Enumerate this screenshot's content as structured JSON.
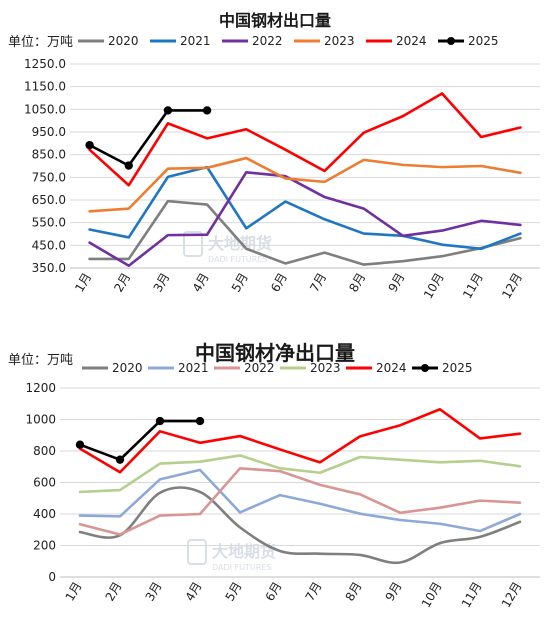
{
  "watermark": {
    "text_cn": "大地期货",
    "text_en": "DADI FUTURES"
  },
  "chart_data": [
    {
      "type": "line",
      "title": "中国钢材出口量",
      "unit_label": "单位：万吨",
      "categories": [
        "1月",
        "2月",
        "3月",
        "4月",
        "5月",
        "6月",
        "7月",
        "8月",
        "9月",
        "10月",
        "11月",
        "12月"
      ],
      "ylim": [
        350,
        1250
      ],
      "yticks": [
        "350.0",
        "450.0",
        "550.0",
        "650.0",
        "750.0",
        "850.0",
        "950.0",
        "1050.0",
        "1150.0",
        "1250.0"
      ],
      "grid": true,
      "legend_position": "top",
      "series": [
        {
          "name": "2020",
          "color": "#7f7f7f",
          "values": [
            390,
            390,
            645,
            630,
            435,
            370,
            418,
            365,
            380,
            402,
            438,
            482
          ]
        },
        {
          "name": "2021",
          "color": "#1f77c4",
          "values": [
            520,
            485,
            752,
            795,
            525,
            643,
            565,
            502,
            492,
            453,
            435,
            502
          ]
        },
        {
          "name": "2022",
          "color": "#7030a0",
          "values": [
            462,
            360,
            495,
            497,
            772,
            755,
            663,
            612,
            492,
            515,
            558,
            540
          ]
        },
        {
          "name": "2023",
          "color": "#ed7d31",
          "values": [
            600,
            612,
            788,
            792,
            835,
            745,
            730,
            827,
            805,
            795,
            800,
            770
          ]
        },
        {
          "name": "2024",
          "color": "#ff0000",
          "values": [
            872,
            715,
            988,
            922,
            962,
            872,
            778,
            947,
            1020,
            1120,
            928,
            970
          ]
        },
        {
          "name": "2025",
          "color": "#000000",
          "marker": true,
          "values": [
            892,
            802,
            1045,
            1045,
            null,
            null,
            null,
            null,
            null,
            null,
            null,
            null
          ]
        }
      ]
    },
    {
      "type": "line",
      "title": "中国钢材净出口量",
      "unit_label": "单位：万吨",
      "categories": [
        "1月",
        "2月",
        "3月",
        "4月",
        "5月",
        "6月",
        "7月",
        "8月",
        "9月",
        "10月",
        "11月",
        "12月"
      ],
      "ylim": [
        0,
        1200
      ],
      "yticks": [
        "0",
        "200",
        "400",
        "600",
        "800",
        "1000",
        "1200"
      ],
      "grid": true,
      "legend_position": "top",
      "series": [
        {
          "name": "2020",
          "color": "#7f7f7f",
          "smooth": true,
          "values": [
            285,
            265,
            535,
            540,
            315,
            165,
            148,
            140,
            92,
            215,
            255,
            350
          ]
        },
        {
          "name": "2021",
          "color": "#8ea9d8",
          "values": [
            390,
            385,
            620,
            680,
            410,
            520,
            465,
            402,
            362,
            338,
            292,
            400
          ]
        },
        {
          "name": "2022",
          "color": "#d99594",
          "values": [
            335,
            270,
            390,
            400,
            690,
            672,
            585,
            525,
            408,
            440,
            485,
            472
          ]
        },
        {
          "name": "2023",
          "color": "#b5cf8d",
          "values": [
            540,
            552,
            720,
            732,
            772,
            690,
            662,
            762,
            745,
            728,
            738,
            703
          ]
        },
        {
          "name": "2024",
          "color": "#ff0000",
          "values": [
            815,
            665,
            925,
            852,
            895,
            810,
            728,
            893,
            963,
            1065,
            880,
            910
          ]
        },
        {
          "name": "2025",
          "color": "#000000",
          "marker": true,
          "values": [
            840,
            745,
            990,
            990,
            null,
            null,
            null,
            null,
            null,
            null,
            null,
            null
          ]
        }
      ]
    }
  ]
}
